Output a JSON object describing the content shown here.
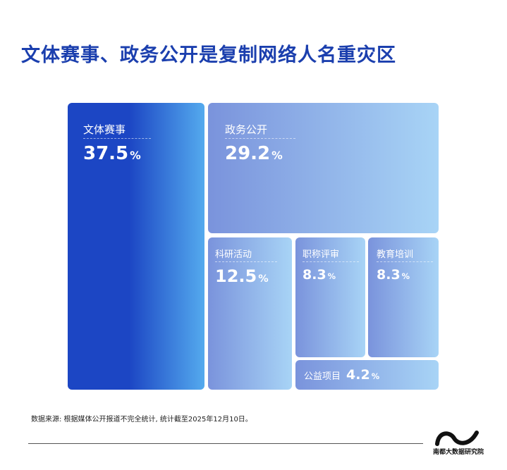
{
  "title": "文体赛事、政务公开是复制网络人名重灾区",
  "chart_data": {
    "type": "treemap",
    "items": [
      {
        "label": "文体赛事",
        "value": 37.5,
        "display": "37.5"
      },
      {
        "label": "政务公开",
        "value": 29.2,
        "display": "29.2"
      },
      {
        "label": "科研活动",
        "value": 12.5,
        "display": "12.5"
      },
      {
        "label": "职称评审",
        "value": 8.3,
        "display": "8.3"
      },
      {
        "label": "教育培训",
        "value": 8.3,
        "display": "8.3"
      },
      {
        "label": "公益项目",
        "value": 4.2,
        "display": "4.2"
      }
    ],
    "unit": "%",
    "colors": {
      "dark_start": "#1c46c4",
      "dark_end": "#54aaee",
      "light_start": "#7a93dc",
      "light_end": "#a8d4f6"
    }
  },
  "source": "数据来源: 根据媒体公开报道不完全统计, 统计截至2025年12月10日。",
  "logo": {
    "text": "南都大数据研究院"
  }
}
